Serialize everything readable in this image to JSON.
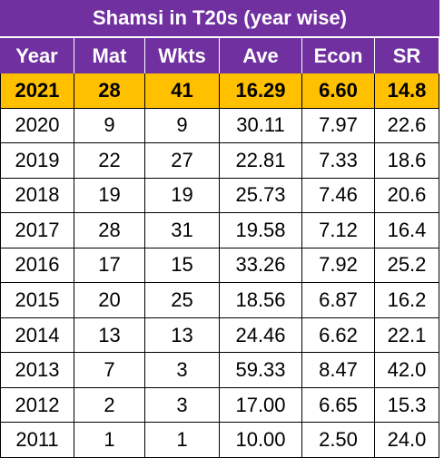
{
  "table": {
    "title": "Shamsi in T20s (year wise)",
    "header": [
      "Year",
      "Mat",
      "Wkts",
      "Ave",
      "Econ",
      "SR"
    ],
    "rows": [
      [
        "2021",
        "28",
        "41",
        "16.29",
        "6.60",
        "14.8"
      ],
      [
        "2020",
        "9",
        "9",
        "30.11",
        "7.97",
        "22.6"
      ],
      [
        "2019",
        "22",
        "27",
        "22.81",
        "7.33",
        "18.6"
      ],
      [
        "2018",
        "19",
        "19",
        "25.73",
        "7.46",
        "20.6"
      ],
      [
        "2017",
        "28",
        "31",
        "19.58",
        "7.12",
        "16.4"
      ],
      [
        "2016",
        "17",
        "15",
        "33.26",
        "7.92",
        "25.2"
      ],
      [
        "2015",
        "20",
        "25",
        "18.56",
        "6.87",
        "16.2"
      ],
      [
        "2014",
        "13",
        "13",
        "24.46",
        "6.62",
        "22.1"
      ],
      [
        "2013",
        "7",
        "3",
        "59.33",
        "8.47",
        "42.0"
      ],
      [
        "2012",
        "2",
        "3",
        "17.00",
        "6.65",
        "15.3"
      ],
      [
        "2011",
        "1",
        "1",
        "10.00",
        "2.50",
        "24.0"
      ]
    ]
  }
}
